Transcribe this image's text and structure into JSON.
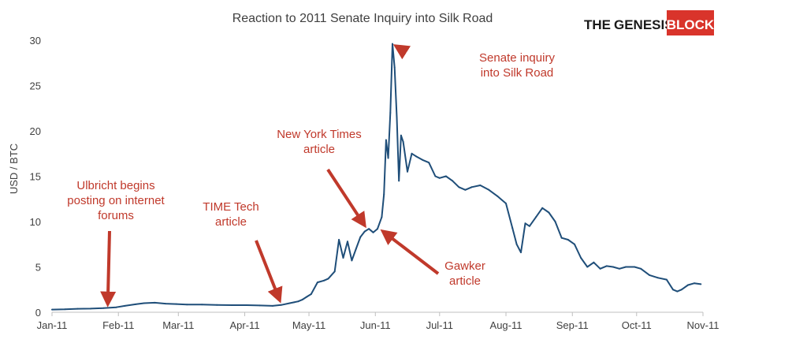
{
  "brand": {
    "word1": "THE",
    "word2": "GENESIS",
    "word3": "BLOCK",
    "text_color": "#1a1a1a",
    "box_color": "#d9342b",
    "box_text_color": "#ffffff"
  },
  "chart_data": {
    "type": "line",
    "title": "Reaction to 2011 Senate Inquiry into Silk Road",
    "xlabel": "",
    "ylabel": "USD / BTC",
    "ylim": [
      0,
      30
    ],
    "yticks": [
      0,
      5,
      10,
      15,
      20,
      25,
      30
    ],
    "xlim": [
      "2011-01-01",
      "2011-11-01"
    ],
    "xticks": [
      {
        "date": "2011-01-01",
        "label": "Jan-11"
      },
      {
        "date": "2011-02-01",
        "label": "Feb-11"
      },
      {
        "date": "2011-03-01",
        "label": "Mar-11"
      },
      {
        "date": "2011-04-01",
        "label": "Apr-11"
      },
      {
        "date": "2011-05-01",
        "label": "May-11"
      },
      {
        "date": "2011-06-01",
        "label": "Jun-11"
      },
      {
        "date": "2011-07-01",
        "label": "Jul-11"
      },
      {
        "date": "2011-08-01",
        "label": "Aug-11"
      },
      {
        "date": "2011-09-01",
        "label": "Sep-11"
      },
      {
        "date": "2011-10-01",
        "label": "Oct-11"
      },
      {
        "date": "2011-11-01",
        "label": "Nov-11"
      }
    ],
    "grid": false,
    "legend": "none",
    "line_color": "#1f4e79",
    "annotation_color": "#c0392b",
    "series": [
      {
        "x": [
          "2011-01-01",
          "2011-01-07",
          "2011-01-13",
          "2011-01-19",
          "2011-01-25",
          "2011-01-31",
          "2011-02-04",
          "2011-02-09",
          "2011-02-13",
          "2011-02-18",
          "2011-02-23",
          "2011-02-28",
          "2011-03-05",
          "2011-03-12",
          "2011-03-19",
          "2011-03-26",
          "2011-04-02",
          "2011-04-08",
          "2011-04-14",
          "2011-04-18",
          "2011-04-22",
          "2011-04-24",
          "2011-04-26",
          "2011-04-28",
          "2011-04-30",
          "2011-05-02",
          "2011-05-05",
          "2011-05-08",
          "2011-05-10",
          "2011-05-13",
          "2011-05-15",
          "2011-05-17",
          "2011-05-19",
          "2011-05-21",
          "2011-05-23",
          "2011-05-25",
          "2011-05-27",
          "2011-05-29",
          "2011-05-31",
          "2011-06-02",
          "2011-06-04",
          "2011-06-05",
          "2011-06-06",
          "2011-06-07",
          "2011-06-08",
          "2011-06-09",
          "2011-06-10",
          "2011-06-11",
          "2011-06-12",
          "2011-06-13",
          "2011-06-14",
          "2011-06-16",
          "2011-06-18",
          "2011-06-20",
          "2011-06-23",
          "2011-06-26",
          "2011-06-29",
          "2011-07-01",
          "2011-07-04",
          "2011-07-07",
          "2011-07-10",
          "2011-07-13",
          "2011-07-16",
          "2011-07-20",
          "2011-07-24",
          "2011-07-28",
          "2011-08-01",
          "2011-08-04",
          "2011-08-06",
          "2011-08-08",
          "2011-08-10",
          "2011-08-12",
          "2011-08-15",
          "2011-08-18",
          "2011-08-21",
          "2011-08-24",
          "2011-08-27",
          "2011-08-30",
          "2011-09-02",
          "2011-09-05",
          "2011-09-08",
          "2011-09-11",
          "2011-09-14",
          "2011-09-17",
          "2011-09-20",
          "2011-09-23",
          "2011-09-26",
          "2011-09-30",
          "2011-10-03",
          "2011-10-07",
          "2011-10-11",
          "2011-10-15",
          "2011-10-18",
          "2011-10-20",
          "2011-10-22",
          "2011-10-25",
          "2011-10-28",
          "2011-10-31"
        ],
        "y": [
          0.3,
          0.32,
          0.38,
          0.4,
          0.45,
          0.55,
          0.7,
          0.88,
          1.0,
          1.05,
          0.95,
          0.9,
          0.85,
          0.85,
          0.8,
          0.78,
          0.78,
          0.75,
          0.7,
          0.8,
          1.0,
          1.1,
          1.2,
          1.4,
          1.7,
          2.0,
          3.3,
          3.5,
          3.7,
          4.5,
          8.0,
          6.0,
          7.8,
          5.7,
          7.0,
          8.3,
          8.9,
          9.2,
          8.8,
          9.2,
          10.5,
          13.0,
          19.0,
          17.0,
          22.0,
          29.6,
          27.0,
          21.5,
          14.5,
          19.5,
          18.8,
          15.5,
          17.5,
          17.2,
          16.8,
          16.5,
          15.0,
          14.8,
          15.0,
          14.5,
          13.8,
          13.5,
          13.8,
          14.0,
          13.5,
          12.8,
          12.0,
          9.3,
          7.5,
          6.6,
          9.8,
          9.5,
          10.5,
          11.5,
          11.0,
          10.0,
          8.2,
          8.0,
          7.5,
          6.0,
          5.0,
          5.5,
          4.8,
          5.1,
          5.0,
          4.8,
          5.0,
          5.0,
          4.8,
          4.1,
          3.8,
          3.6,
          2.5,
          2.3,
          2.5,
          3.0,
          3.2,
          3.1
        ]
      }
    ],
    "annotations": [
      {
        "text": [
          "Senate inquiry",
          "into Silk Road"
        ],
        "target_x": "2011-06-09",
        "target_y": 29.6
      },
      {
        "text": [
          "New York Times",
          "article"
        ],
        "target_x": "2011-05-28",
        "target_y": 9.2
      },
      {
        "text": [
          "Gawker",
          "article"
        ],
        "target_x": "2011-06-03",
        "target_y": 9.2
      },
      {
        "text": [
          "TIME Tech",
          "article"
        ],
        "target_x": "2011-04-18",
        "target_y": 0.9
      },
      {
        "text": [
          "Ulbricht begins",
          "posting on internet",
          "forums"
        ],
        "target_x": "2011-01-27",
        "target_y": 0.45
      }
    ]
  }
}
